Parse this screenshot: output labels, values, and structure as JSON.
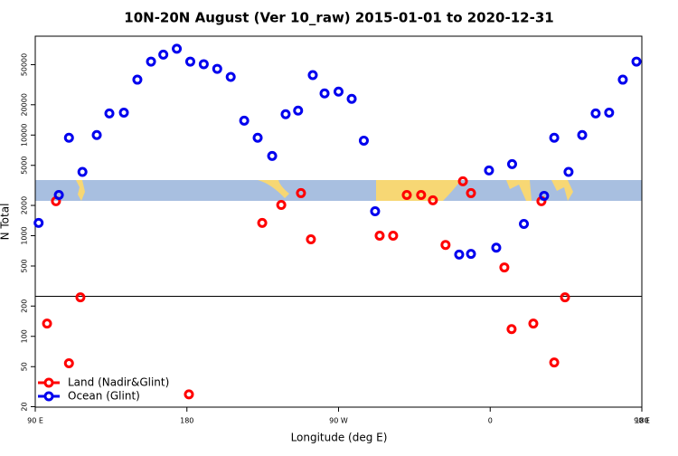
{
  "chart_data": {
    "type": "scatter",
    "title": "10N-20N August (Ver 10_raw)   2015-01-01 to 2020-12-31",
    "x_label": "Longitude (deg E)",
    "y_label": "N Total",
    "log_y": true,
    "legend": "bottom-left",
    "xlim": [
      90,
      450
    ],
    "xticks": [
      {
        "value": 90,
        "label": "90 E"
      },
      {
        "value": 180,
        "label": "180"
      },
      {
        "value": 270,
        "label": "90 W"
      },
      {
        "value": 360,
        "label": "0"
      },
      {
        "value": 450,
        "label": "90 E"
      },
      {
        "value": 540,
        "label": "180"
      }
    ],
    "ylim": [
      19.8,
      96000
    ],
    "yticks": [
      20,
      50,
      100,
      200,
      500,
      1000,
      2000,
      5000,
      10000,
      20000,
      50000
    ],
    "hline": 250,
    "series": [
      {
        "name": "Land (Nadir&Glint)",
        "color": "#ff0000",
        "x": [
          97,
          102.3,
          110,
          116.8,
          181.2,
          224.7,
          236,
          247.7,
          253.6,
          294.4,
          302.4,
          310.5,
          319,
          326,
          333.5,
          343.8,
          348.6,
          368.4,
          372.7,
          385.6,
          390.4,
          398,
          404.4
        ],
        "values": [
          134,
          2200,
          54,
          244,
          26.5,
          1340,
          2020,
          2650,
          920,
          1000,
          1000,
          2540,
          2540,
          2250,
          810,
          3470,
          2650,
          484,
          118,
          134,
          2200,
          55,
          244
        ]
      },
      {
        "name": "Ocean (Glint)",
        "color": "#0000ee",
        "x": [
          92,
          104,
          110,
          118,
          126.5,
          134,
          142.6,
          150.6,
          158.7,
          166,
          174,
          182,
          190,
          198,
          206,
          214,
          222,
          230.6,
          238.6,
          246,
          254.7,
          261.7,
          270,
          277.8,
          285,
          291.7,
          341.6,
          348.6,
          359.3,
          363.6,
          373,
          380,
          392,
          398,
          406.5,
          414.6,
          422.6,
          430.6,
          438.7,
          446.8
        ],
        "values": [
          1340,
          2540,
          9400,
          4300,
          10000,
          16400,
          16700,
          35500,
          53700,
          63000,
          72000,
          53700,
          50600,
          45500,
          37800,
          13900,
          9400,
          6200,
          16100,
          17500,
          39400,
          25900,
          27000,
          22900,
          8800,
          1750,
          650,
          660,
          4450,
          760,
          5150,
          1310,
          2490,
          9400,
          4300,
          10000,
          16400,
          16700,
          35500,
          53700
        ]
      }
    ]
  }
}
